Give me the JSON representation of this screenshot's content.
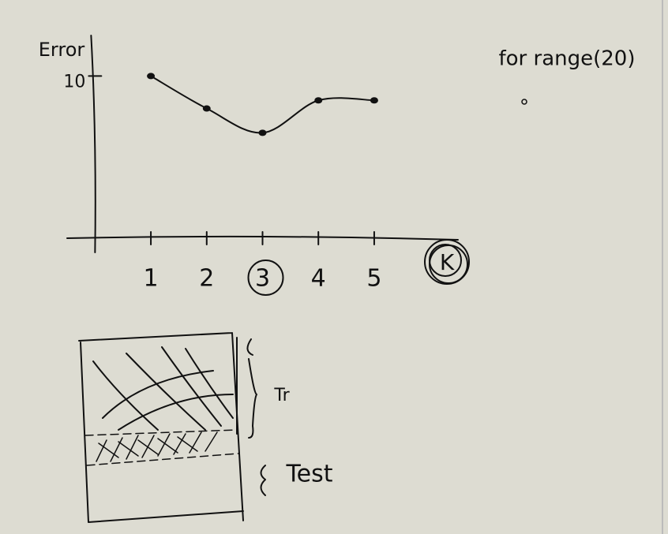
{
  "chart_data": {
    "type": "line",
    "y_label": "Error",
    "x_label": "K",
    "x": [
      1,
      2,
      3,
      4,
      5
    ],
    "xticks": [
      1,
      2,
      3,
      4,
      5
    ],
    "xlim": [
      -0.5,
      6.5
    ],
    "series": [
      {
        "color": "#111111",
        "values": [
          10,
          8,
          6.5,
          8.5,
          8.5
        ]
      }
    ],
    "ylim": [
      0,
      12.5
    ],
    "yticks": [
      10
    ],
    "highlight_x": 3,
    "annotations": {
      "code": "for range(20)",
      "train": "Tr",
      "test": "Test"
    }
  }
}
